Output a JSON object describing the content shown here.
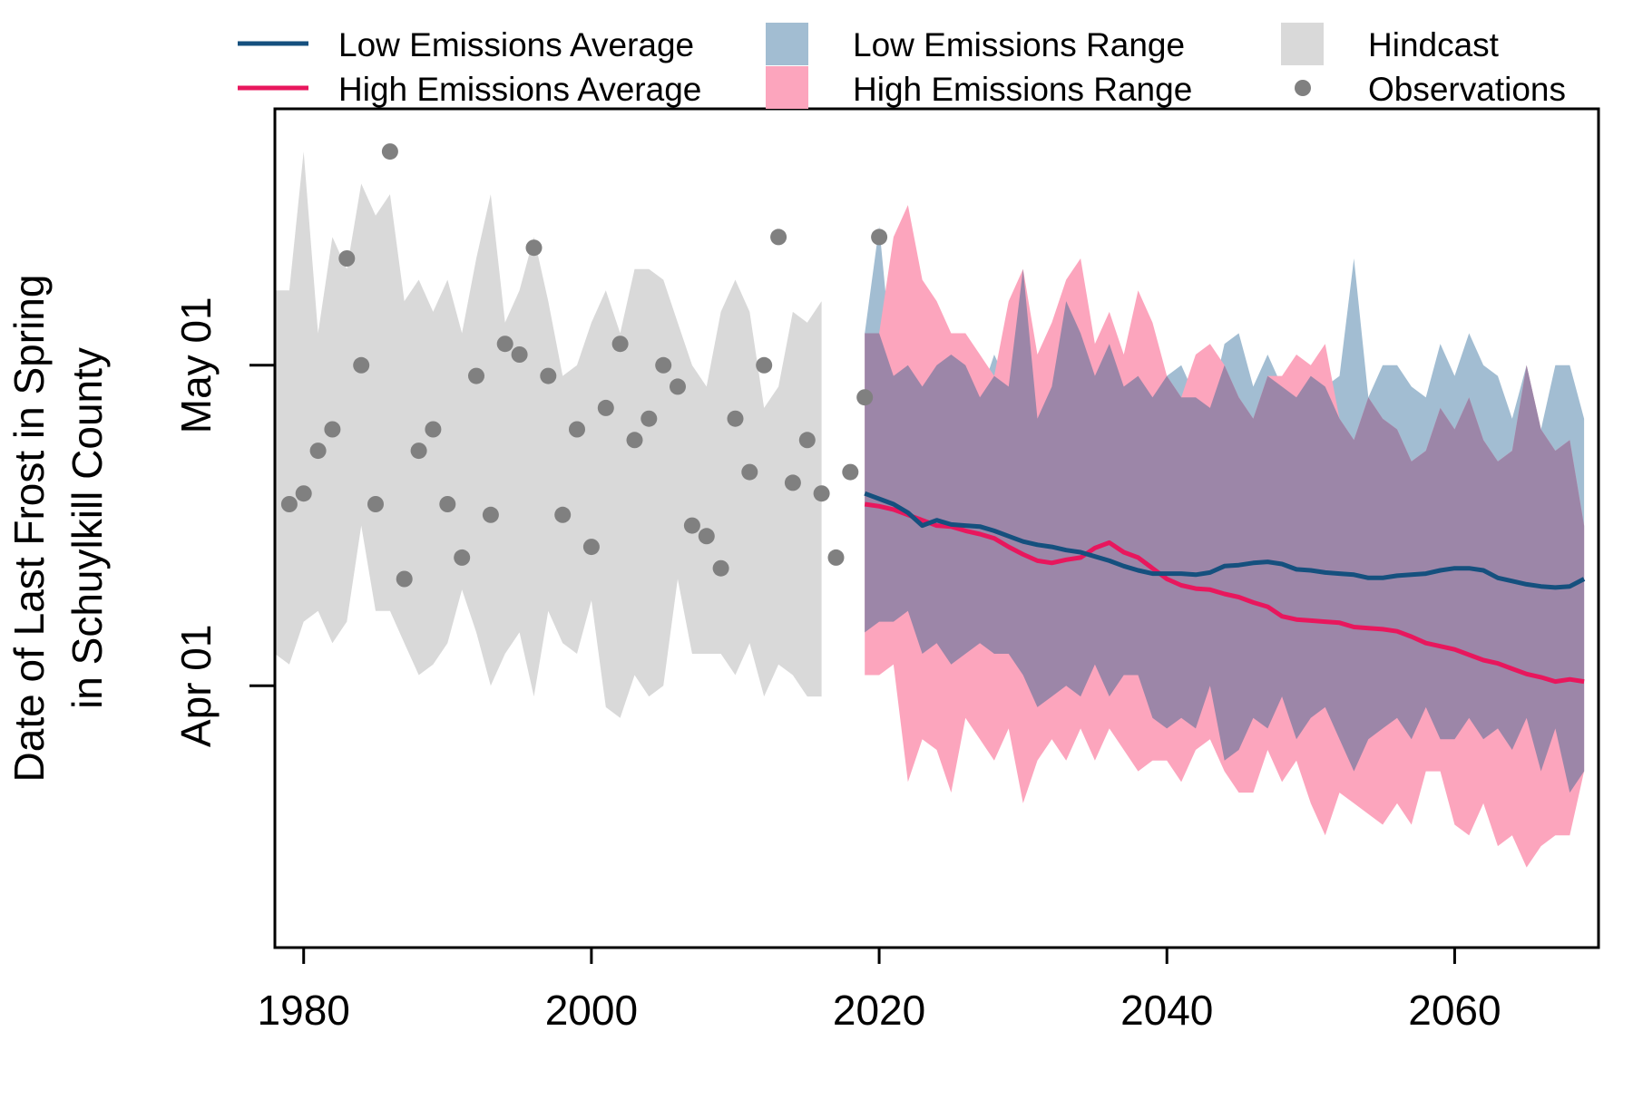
{
  "chart_data": {
    "type": "line",
    "xlabel": "",
    "ylabel_lines": [
      "Date of Last Frost in Spring",
      "in Schuylkill County"
    ],
    "y_unit": "day of year",
    "x_ticks": [
      1980,
      2000,
      2020,
      2040,
      2060
    ],
    "y_ticks": [
      {
        "value": 91,
        "label": "Apr 01"
      },
      {
        "value": 121,
        "label": "May 01"
      }
    ],
    "xlim": [
      1978,
      2070
    ],
    "ylim": [
      66.5,
      145
    ],
    "legend": {
      "position": "top",
      "entries": [
        {
          "label": "Low Emissions Average",
          "kind": "line",
          "color": "#15507e"
        },
        {
          "label": "High Emissions Average",
          "kind": "line",
          "color": "#e8175d"
        },
        {
          "label": "Low Emissions Range",
          "kind": "fill",
          "color": "#a2bdd2"
        },
        {
          "label": "High Emissions Range",
          "kind": "fill",
          "color": "#fca5bd"
        },
        {
          "label": "Hindcast",
          "kind": "fill",
          "color": "#d9d9d9"
        },
        {
          "label": "Observations",
          "kind": "point",
          "color": "#808080"
        }
      ]
    },
    "colors": {
      "low_line": "#15507e",
      "high_line": "#e8175d",
      "low_range": "#a2bdd2",
      "high_range": "#fca5bd",
      "overlap": "#9c86a8",
      "hindcast": "#d9d9d9",
      "observations": "#808080"
    },
    "hindcast": {
      "x_start": 1978,
      "upper": [
        128,
        128,
        141,
        124,
        133,
        130,
        138,
        135,
        137,
        127,
        129,
        126,
        129,
        124,
        131,
        137,
        125,
        128,
        133,
        127,
        120,
        121,
        125,
        128,
        124,
        130,
        130,
        129,
        125,
        121,
        119,
        126,
        129,
        126,
        117,
        119,
        126,
        125,
        127
      ],
      "lower": [
        94,
        93,
        97,
        98,
        95,
        97,
        106,
        98,
        98,
        95,
        92,
        93,
        95,
        100,
        96,
        91,
        94,
        96,
        90,
        98,
        95,
        94,
        99,
        89,
        88,
        92,
        90,
        91,
        101,
        94,
        94,
        94,
        92,
        95,
        90,
        93,
        92,
        90,
        90
      ]
    },
    "observations": {
      "x": [
        1979,
        1980,
        1981,
        1982,
        1983,
        1984,
        1985,
        1986,
        1987,
        1988,
        1989,
        1990,
        1991,
        1992,
        1993,
        1994,
        1995,
        1996,
        1997,
        1998,
        1999,
        2000,
        2001,
        2002,
        2003,
        2004,
        2005,
        2006,
        2007,
        2008,
        2009,
        2010,
        2011,
        2012,
        2013,
        2014,
        2015,
        2016,
        2017,
        2018,
        2019,
        2020
      ],
      "y": [
        108,
        109,
        113,
        115,
        131,
        121,
        108,
        141,
        101,
        113,
        115,
        108,
        103,
        120,
        107,
        123,
        122,
        132,
        120,
        107,
        115,
        104,
        117,
        123,
        114,
        116,
        121,
        119,
        106,
        105,
        102,
        116,
        111,
        121,
        133,
        110,
        114,
        109,
        103,
        111,
        118,
        133
      ]
    },
    "low": {
      "x_start": 2019,
      "average": [
        109,
        108.5,
        108,
        107.2,
        106,
        106.5,
        106.1,
        106,
        105.9,
        105.5,
        105,
        104.5,
        104.2,
        104,
        103.7,
        103.5,
        103.1,
        102.7,
        102.2,
        101.8,
        101.5,
        101.5,
        101.5,
        101.4,
        101.6,
        102.2,
        102.3,
        102.5,
        102.6,
        102.4,
        101.9,
        101.8,
        101.6,
        101.5,
        101.4,
        101.1,
        101.1,
        101.3,
        101.4,
        101.5,
        101.8,
        102,
        102,
        101.8,
        101.1,
        100.8,
        100.5,
        100.3,
        100.2,
        100.3,
        101
      ],
      "upper": [
        124,
        134,
        120,
        121,
        119,
        121,
        122,
        121,
        118,
        122,
        119,
        130,
        116,
        119,
        127,
        124,
        120,
        123,
        119,
        120,
        118,
        120,
        121,
        118,
        117,
        123,
        124,
        119,
        122,
        119,
        118,
        120,
        119,
        120,
        131,
        118,
        121,
        121,
        119,
        118,
        123,
        120,
        124,
        121,
        120,
        116,
        121,
        115,
        121,
        121,
        116
      ],
      "lower": [
        96,
        97,
        97,
        98,
        94,
        95,
        93,
        94,
        95,
        94,
        94,
        92,
        89,
        90,
        91,
        90,
        93,
        90,
        92,
        92,
        88,
        87,
        88,
        87,
        91,
        84,
        85,
        88,
        87,
        90,
        86,
        88,
        89,
        86,
        83,
        86,
        87,
        88,
        86,
        89,
        86,
        86,
        88,
        86,
        87,
        85,
        88,
        83,
        87,
        81,
        83
      ]
    },
    "high": {
      "x_start": 2019,
      "average": [
        108,
        107.8,
        107.5,
        107,
        106.5,
        106,
        105.9,
        105.5,
        105.2,
        104.8,
        104,
        103.3,
        102.7,
        102.5,
        102.8,
        103,
        103.9,
        104.4,
        103.5,
        103,
        102,
        101,
        100.4,
        100.1,
        100,
        99.6,
        99.3,
        98.8,
        98.4,
        97.5,
        97.2,
        97.1,
        97,
        96.9,
        96.5,
        96.4,
        96.3,
        96.1,
        95.6,
        95,
        94.7,
        94.4,
        93.9,
        93.4,
        93.1,
        92.6,
        92.1,
        91.8,
        91.4,
        91.6,
        91.4
      ],
      "upper": [
        124,
        124,
        133,
        136,
        129,
        127,
        124,
        124,
        122,
        120,
        127,
        130,
        122,
        125,
        129,
        131,
        123,
        126,
        122,
        128,
        125,
        120,
        118,
        122,
        123,
        121,
        118,
        116,
        120,
        120,
        122,
        121,
        123,
        116,
        114,
        118,
        116,
        115,
        112,
        113,
        117,
        115,
        118,
        114,
        112,
        113,
        121,
        115,
        113,
        114,
        106
      ],
      "lower": [
        92,
        92,
        93,
        82,
        86,
        85,
        81,
        88,
        86,
        84,
        87,
        80,
        84,
        86,
        84,
        87,
        84,
        87,
        85,
        83,
        84,
        84,
        82,
        85,
        86,
        83,
        81,
        81,
        85,
        82,
        84,
        80,
        77,
        81,
        80,
        79,
        78,
        80,
        78,
        83,
        83,
        78,
        77,
        80,
        76,
        77,
        74,
        76,
        77,
        77,
        83
      ]
    }
  }
}
